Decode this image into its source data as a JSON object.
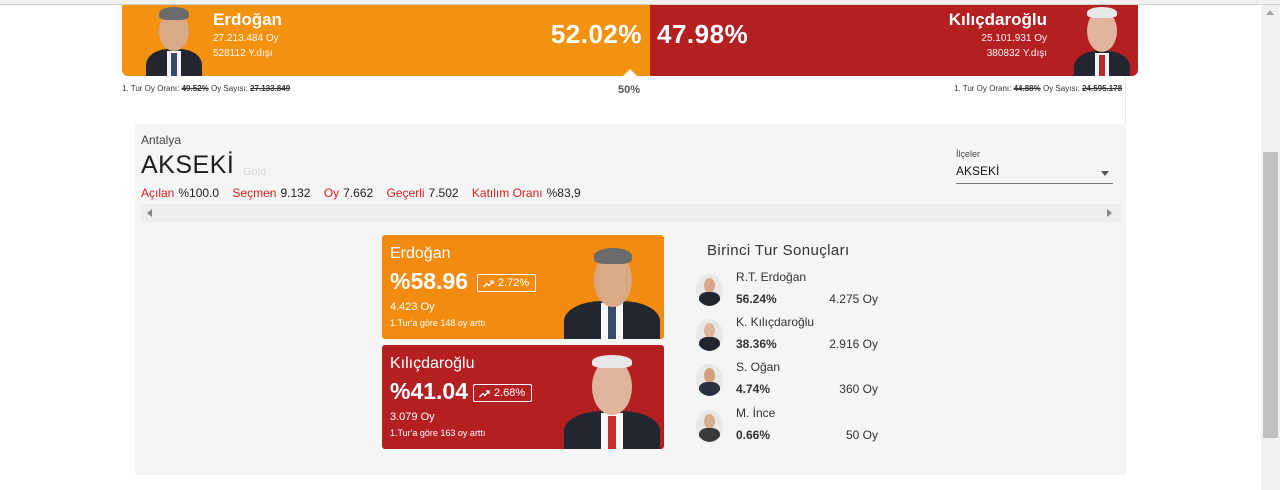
{
  "header": {
    "left": {
      "name": "Erdoğan",
      "votes": "27.213.484 Oy",
      "abroad": "528112 Y.dışı",
      "percent": "52.02%",
      "color": "#f39111"
    },
    "right": {
      "name": "Kılıçdaroğlu",
      "votes": "25.101.931 Oy",
      "abroad": "380832 Y.dışı",
      "percent": "47.98%",
      "color": "#b41f22"
    },
    "midpoint": "50%",
    "left_round": {
      "label_rate": "1. Tur Oy Oranı:",
      "rate": "49.52%",
      "label_count": "Oy Sayısı:",
      "count": "27.133.849"
    },
    "right_round": {
      "label_rate": "1. Tur Oy Oranı:",
      "rate": "44.88%",
      "label_count": "Oy Sayısı:",
      "count": "24.595.178"
    }
  },
  "location": {
    "province": "Antalya",
    "district": "AKSEKİ",
    "ghost": "Gold",
    "stats": [
      {
        "label": "Açılan",
        "value": "%100.0"
      },
      {
        "label": "Seçmen",
        "value": "9.132"
      },
      {
        "label": "Oy",
        "value": "7.662"
      },
      {
        "label": "Geçerli",
        "value": "7.502"
      },
      {
        "label": "Katılım Oranı",
        "value": "%83,9"
      }
    ]
  },
  "district_select": {
    "label": "İlçeler",
    "value": "AKSEKİ"
  },
  "cards": [
    {
      "name": "Erdoğan",
      "percent": "%58.96",
      "change": "2.72%",
      "votes": "4.423 Oy",
      "note": "1.Tur'a göre 148 oy arttı",
      "color": "#f28b0f"
    },
    {
      "name": "Kılıçdaroğlu",
      "percent": "%41.04",
      "change": "2.68%",
      "votes": "3.079 Oy",
      "note": "1.Tur'a göre 163 oy arttı",
      "color": "#b41f22"
    }
  ],
  "first_round": {
    "title": "Birinci Tur Sonuçları",
    "rows": [
      {
        "name": "R.T. Erdoğan",
        "percent": "56.24%",
        "votes": "4.275 Oy"
      },
      {
        "name": "K. Kılıçdaroğlu",
        "percent": "38.36%",
        "votes": "2.916 Oy"
      },
      {
        "name": "S. Oğan",
        "percent": "4.74%",
        "votes": "360 Oy"
      },
      {
        "name": "M. İnce",
        "percent": "0.66%",
        "votes": "50 Oy"
      }
    ]
  },
  "icons": {
    "trend": "trending-up-icon",
    "select_caret": "chevron-down-icon",
    "scroll_left": "arrow-left-icon",
    "scroll_right": "arrow-right-icon"
  }
}
